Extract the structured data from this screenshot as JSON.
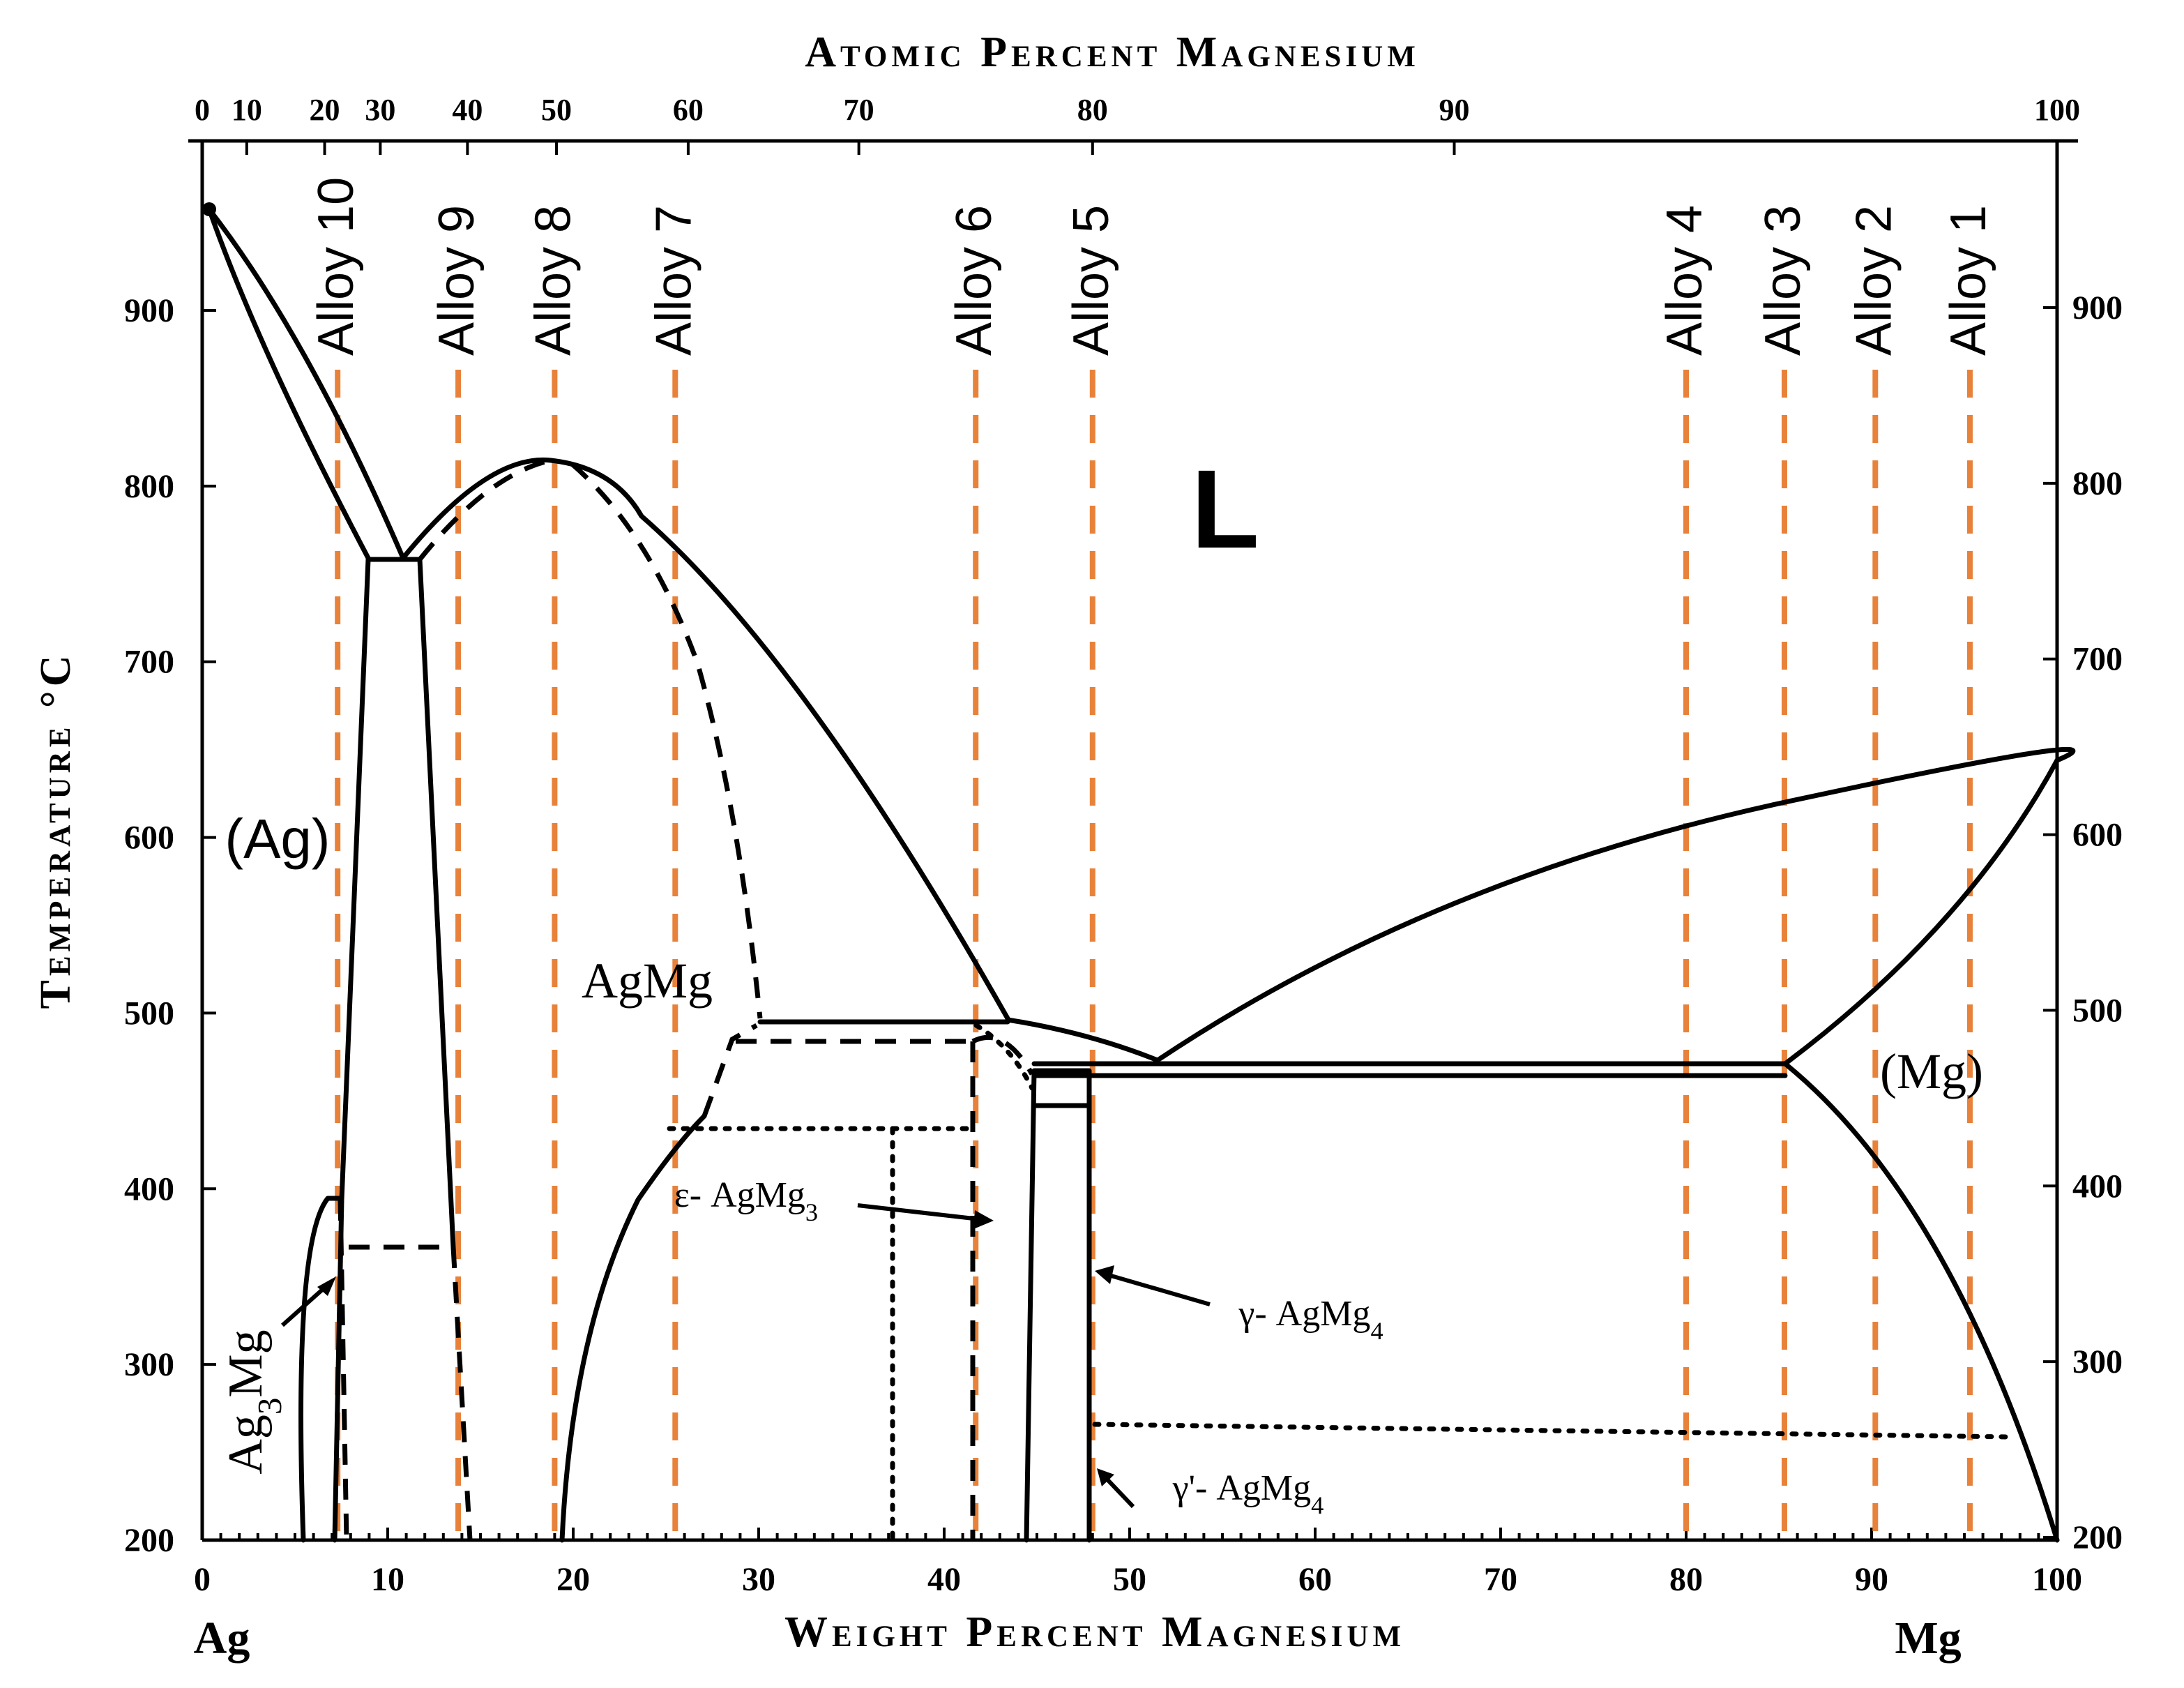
{
  "axes": {
    "top_title": "Atomic Percent Magnesium",
    "bottom_title": "Weight Percent Magnesium",
    "left_title": "Temperature °C",
    "left_element": "Ag",
    "right_element": "Mg",
    "x_range_wt": [
      0,
      100
    ],
    "y_range_c": [
      200,
      990
    ],
    "top_ticks": [
      {
        "label": "0",
        "wt": 0
      },
      {
        "label": "10",
        "wt": 2.4
      },
      {
        "label": "20",
        "wt": 6.6
      },
      {
        "label": "30",
        "wt": 9.6
      },
      {
        "label": "40",
        "wt": 14.3
      },
      {
        "label": "50",
        "wt": 19.1
      },
      {
        "label": "60",
        "wt": 26.2
      },
      {
        "label": "70",
        "wt": 35.4
      },
      {
        "label": "80",
        "wt": 48.0
      },
      {
        "label": "90",
        "wt": 67.5
      },
      {
        "label": "100",
        "wt": 100
      }
    ],
    "bottom_ticks": [
      "0",
      "10",
      "20",
      "30",
      "40",
      "50",
      "60",
      "70",
      "80",
      "90",
      "100"
    ],
    "left_ticks": [
      "200",
      "300",
      "400",
      "500",
      "600",
      "700",
      "800",
      "900"
    ],
    "right_ticks": [
      "200",
      "300",
      "400",
      "500",
      "600",
      "700",
      "800",
      "900"
    ]
  },
  "phases": {
    "liquid": "L",
    "ag": "(Ag)",
    "mg": "(Mg)",
    "agmg": "AgMg",
    "ag3mg": "Ag3Mg",
    "epsilon": "ε- AgMg3",
    "gamma": "γ- AgMg4",
    "gamma_prime": "γ'- AgMg4"
  },
  "alloys": [
    {
      "label": "Alloy 10",
      "wt": 7.3
    },
    {
      "label": "Alloy 9",
      "wt": 13.8
    },
    {
      "label": "Alloy 8",
      "wt": 19.0
    },
    {
      "label": "Alloy 7",
      "wt": 25.5
    },
    {
      "label": "Alloy 6",
      "wt": 41.7
    },
    {
      "label": "Alloy 5",
      "wt": 48.0
    },
    {
      "label": "Alloy 4",
      "wt": 80.0
    },
    {
      "label": "Alloy 3",
      "wt": 85.3
    },
    {
      "label": "Alloy 2",
      "wt": 90.2
    },
    {
      "label": "Alloy 1",
      "wt": 95.3
    }
  ],
  "colors": {
    "alloy_line": "#e8823a",
    "phase_boundary": "#000000"
  }
}
